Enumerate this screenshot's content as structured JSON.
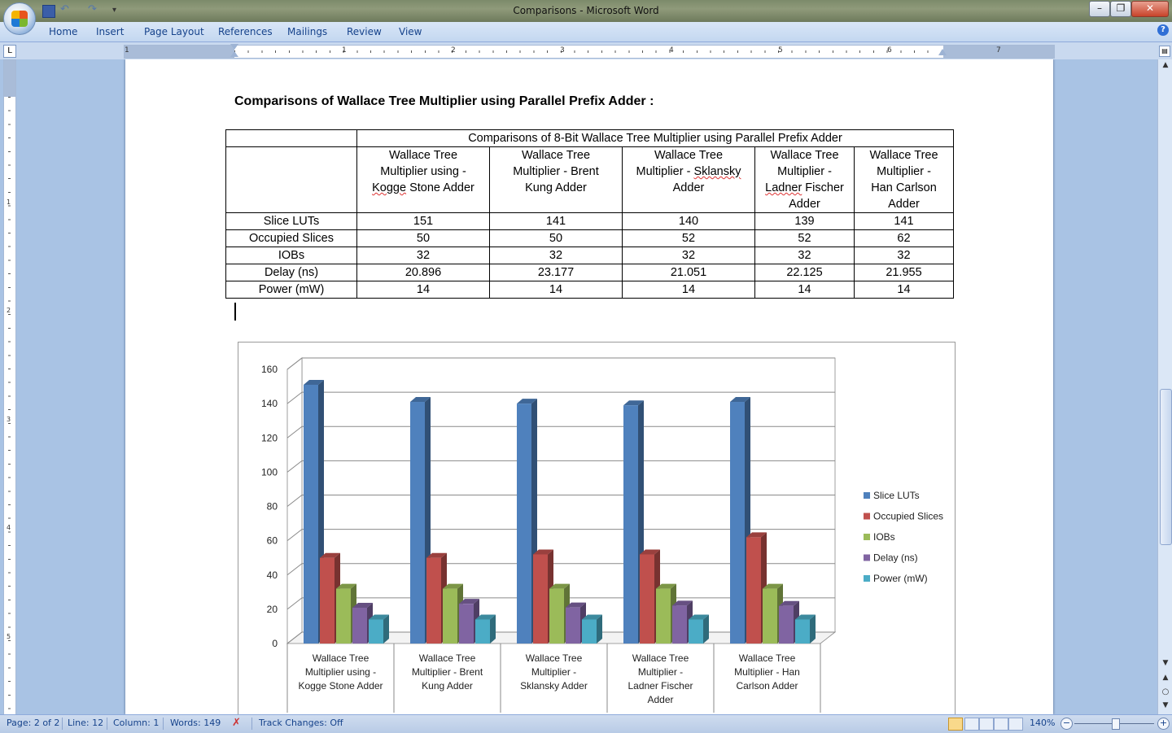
{
  "window": {
    "title": "Comparisons - Microsoft Word"
  },
  "quick_access": {
    "save": "save-icon",
    "undo": "undo-icon",
    "redo": "redo-icon",
    "customize": "▾"
  },
  "window_controls": {
    "minimize": "–",
    "maximize": "❐",
    "close": "✕"
  },
  "ribbon": {
    "tabs": [
      "Home",
      "Insert",
      "Page Layout",
      "References",
      "Mailings",
      "Review",
      "View"
    ]
  },
  "ruler": {
    "numbers": [
      "1",
      "1",
      "2",
      "3",
      "4",
      "5",
      "6",
      "7"
    ]
  },
  "vruler": {
    "numbers": [
      "1",
      "2",
      "3",
      "4",
      "5"
    ]
  },
  "document": {
    "heading": "Comparisons of Wallace Tree Multiplier using Parallel Prefix Adder :",
    "table": {
      "caption": "Comparisons of 8-Bit Wallace Tree Multiplier using Parallel Prefix Adder",
      "columns": [
        "Wallace Tree Multiplier using - Kogge Stone Adder",
        "Wallace Tree Multiplier - Brent Kung Adder",
        "Wallace Tree Multiplier - Sklansky Adder",
        "Wallace Tree Multiplier - Ladner Fischer Adder",
        "Wallace Tree Multiplier - Han Carlson Adder"
      ],
      "rows": [
        {
          "label": "Slice LUTs",
          "values": [
            "151",
            "141",
            "140",
            "139",
            "141"
          ]
        },
        {
          "label": "Occupied Slices",
          "values": [
            "50",
            "50",
            "52",
            "52",
            "62"
          ]
        },
        {
          "label": "IOBs",
          "values": [
            "32",
            "32",
            "32",
            "32",
            "32"
          ]
        },
        {
          "label": "Delay (ns)",
          "values": [
            "20.896",
            "23.177",
            "21.051",
            "22.125",
            "21.955"
          ]
        },
        {
          "label": "Power (mW)",
          "values": [
            "14",
            "14",
            "14",
            "14",
            "14"
          ]
        }
      ]
    }
  },
  "chart_data": {
    "type": "bar",
    "style": "3d-clustered-column",
    "categories": [
      "Wallace Tree Multiplier using - Kogge Stone Adder",
      "Wallace Tree Multiplier - Brent Kung Adder",
      "Wallace Tree Multiplier - Sklansky Adder",
      "Wallace Tree Multiplier - Ladner Fischer Adder",
      "Wallace Tree Multiplier - Han Carlson Adder"
    ],
    "series": [
      {
        "name": "Slice LUTs",
        "values": [
          151,
          141,
          140,
          139,
          141
        ],
        "color": "#4f81bd"
      },
      {
        "name": "Occupied Slices",
        "values": [
          50,
          50,
          52,
          52,
          62
        ],
        "color": "#c0504d"
      },
      {
        "name": "IOBs",
        "values": [
          32,
          32,
          32,
          32,
          32
        ],
        "color": "#9bbb59"
      },
      {
        "name": "Delay (ns)",
        "values": [
          20.896,
          23.177,
          21.051,
          22.125,
          21.955
        ],
        "color": "#8064a2"
      },
      {
        "name": "Power (mW)",
        "values": [
          14,
          14,
          14,
          14,
          14
        ],
        "color": "#4bacc6"
      }
    ],
    "ylim": [
      0,
      160
    ],
    "yticks": [
      "0",
      "20",
      "40",
      "60",
      "80",
      "100",
      "120",
      "140",
      "160"
    ],
    "grid": true,
    "legend": "right",
    "title": "",
    "xlabel": "",
    "ylabel": ""
  },
  "statusbar": {
    "page": "Page: 2 of 2",
    "line": "Line: 12",
    "column": "Column: 1",
    "words": "Words: 149",
    "track_changes": "Track Changes: Off",
    "zoom": "140%",
    "zoom_minus": "−",
    "zoom_plus": "+"
  }
}
